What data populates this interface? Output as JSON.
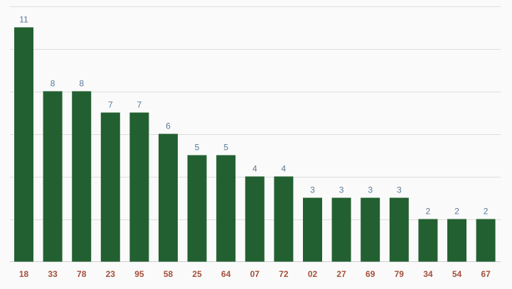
{
  "chart_data": {
    "type": "bar",
    "categories": [
      "18",
      "33",
      "78",
      "23",
      "95",
      "58",
      "25",
      "64",
      "07",
      "72",
      "02",
      "27",
      "69",
      "79",
      "34",
      "54",
      "67"
    ],
    "values": [
      11,
      8,
      8,
      7,
      7,
      6,
      5,
      5,
      4,
      4,
      3,
      3,
      3,
      3,
      2,
      2,
      2
    ],
    "title": "",
    "xlabel": "",
    "ylabel": "",
    "ylim": [
      0,
      12
    ],
    "grid": true,
    "colors": {
      "bar": "#236031",
      "value_label": "#5b7a99",
      "category_label": "#a4503a",
      "grid": "#dedede",
      "background": "#fafafa"
    }
  }
}
